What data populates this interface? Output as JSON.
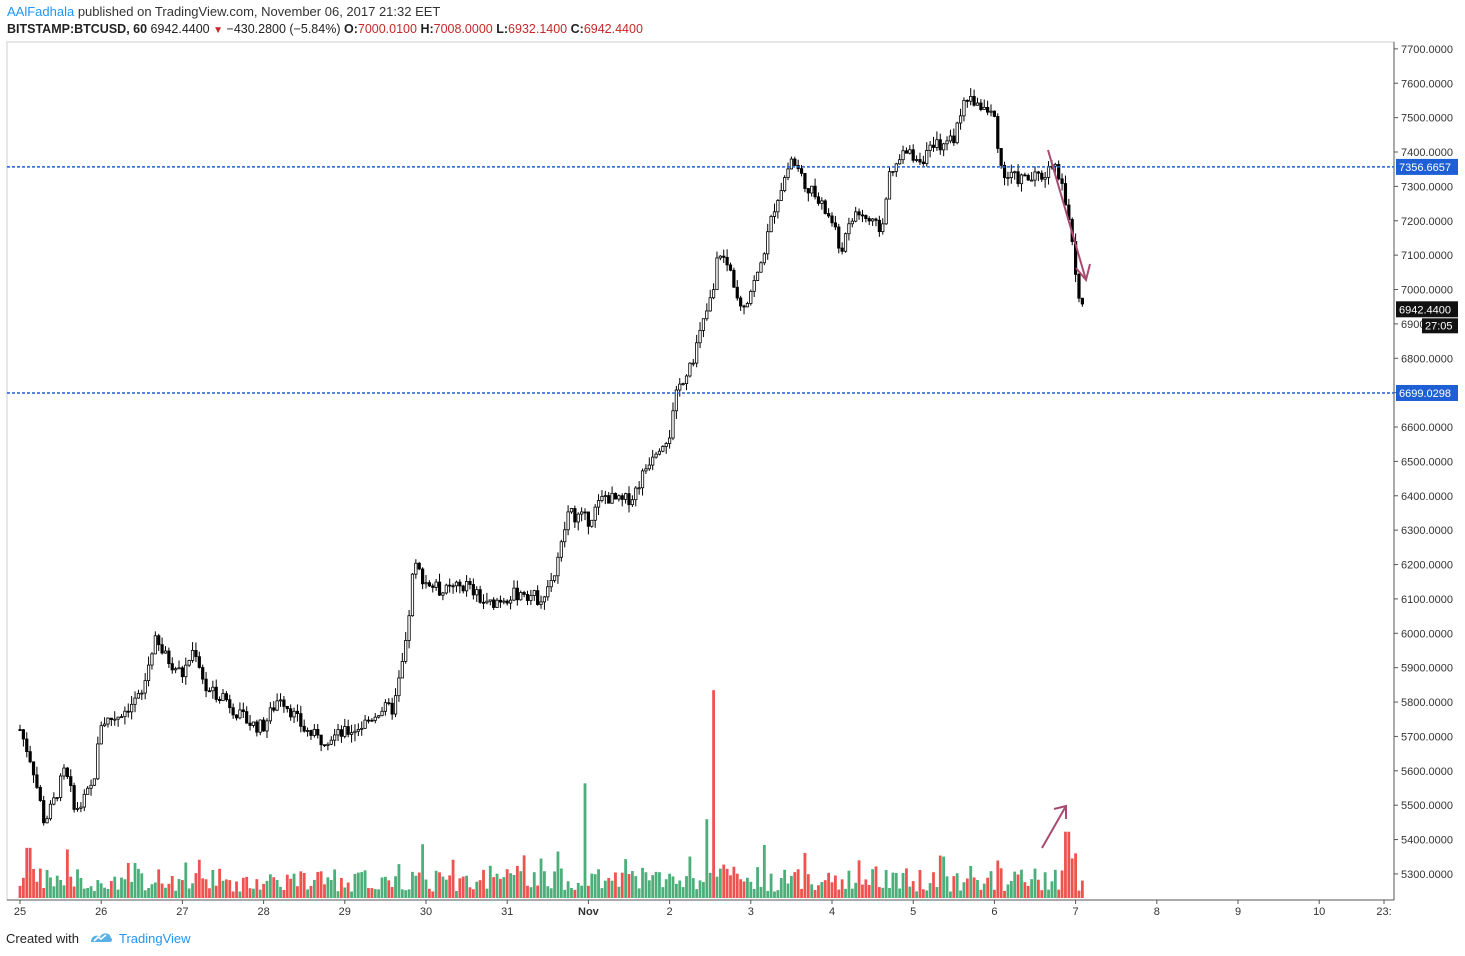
{
  "header": {
    "author": "AAlFadhala",
    "published_text": " published on TradingView.com, November 06, 2017 21:32 EET",
    "symbol": "BITSTAMP:BTCUSD, 60",
    "last": "6942.4400",
    "change": "−430.2800 (−5.84%)",
    "o_label": "O:",
    "o": "7000.0100",
    "h_label": "H:",
    "h": "7008.0000",
    "l_label": "L:",
    "l": "6932.1400",
    "c_label": "C:",
    "c": "6942.4400"
  },
  "footer": {
    "created_with": "Created with",
    "brand": "TradingView"
  },
  "colors": {
    "up": "#26a69a",
    "vol_up": "#4caf7a",
    "vol_down": "#ef5350",
    "hline": "#1e5fd6",
    "arrow": "#a84a70",
    "price_label_bg": "#111111"
  },
  "chart_data": {
    "type": "candlestick",
    "symbol": "BITSTAMP:BTCUSD",
    "interval": "60",
    "y_axis": {
      "min": 5230,
      "max": 7720,
      "ticks": [
        5300,
        5400,
        5500,
        5600,
        5700,
        5800,
        5900,
        6000,
        6100,
        6200,
        6300,
        6400,
        6500,
        6600,
        6700,
        6800,
        6900,
        7000,
        7100,
        7200,
        7300,
        7400,
        7500,
        7600,
        7700
      ],
      "tick_format": "0000.0000"
    },
    "x_axis": {
      "ticks": [
        "25",
        "26",
        "27",
        "28",
        "29",
        "30",
        "31",
        "Nov",
        "2",
        "3",
        "4",
        "5",
        "6",
        "7",
        "8",
        "9",
        "10",
        "23:"
      ]
    },
    "price_path": [
      [
        0,
        5720
      ],
      [
        0.15,
        5620
      ],
      [
        0.3,
        5450
      ],
      [
        0.4,
        5500
      ],
      [
        0.55,
        5600
      ],
      [
        0.7,
        5480
      ],
      [
        0.9,
        5560
      ],
      [
        1.0,
        5740
      ],
      [
        1.2,
        5760
      ],
      [
        1.5,
        5820
      ],
      [
        1.65,
        5980
      ],
      [
        1.8,
        5930
      ],
      [
        2.0,
        5880
      ],
      [
        2.15,
        5960
      ],
      [
        2.3,
        5830
      ],
      [
        2.5,
        5820
      ],
      [
        2.7,
        5760
      ],
      [
        2.9,
        5730
      ],
      [
        3.0,
        5730
      ],
      [
        3.2,
        5820
      ],
      [
        3.5,
        5720
      ],
      [
        3.7,
        5690
      ],
      [
        4.0,
        5710
      ],
      [
        4.2,
        5730
      ],
      [
        4.45,
        5780
      ],
      [
        4.6,
        5780
      ],
      [
        4.75,
        5960
      ],
      [
        4.85,
        6200
      ],
      [
        5.0,
        6150
      ],
      [
        5.2,
        6120
      ],
      [
        5.5,
        6140
      ],
      [
        5.75,
        6080
      ],
      [
        5.9,
        6100
      ],
      [
        6.2,
        6120
      ],
      [
        6.4,
        6100
      ],
      [
        6.6,
        6180
      ],
      [
        6.75,
        6350
      ],
      [
        7.0,
        6330
      ],
      [
        7.2,
        6400
      ],
      [
        7.4,
        6380
      ],
      [
        7.55,
        6400
      ],
      [
        7.8,
        6530
      ],
      [
        8.0,
        6580
      ],
      [
        8.1,
        6710
      ],
      [
        8.3,
        6810
      ],
      [
        8.45,
        6930
      ],
      [
        8.55,
        7000
      ],
      [
        8.6,
        7120
      ],
      [
        8.75,
        7050
      ],
      [
        8.9,
        6950
      ],
      [
        9.1,
        7050
      ],
      [
        9.3,
        7250
      ],
      [
        9.5,
        7380
      ],
      [
        9.7,
        7300
      ],
      [
        10.0,
        7200
      ],
      [
        10.1,
        7110
      ],
      [
        10.3,
        7230
      ],
      [
        10.6,
        7170
      ],
      [
        10.7,
        7320
      ],
      [
        10.9,
        7400
      ],
      [
        11.1,
        7380
      ],
      [
        11.3,
        7420
      ],
      [
        11.5,
        7440
      ],
      [
        11.65,
        7560
      ],
      [
        11.8,
        7540
      ],
      [
        12.0,
        7500
      ],
      [
        12.1,
        7330
      ],
      [
        12.4,
        7320
      ],
      [
        12.6,
        7330
      ],
      [
        12.75,
        7380
      ],
      [
        12.85,
        7280
      ],
      [
        12.95,
        7150
      ],
      [
        13.0,
        7050
      ],
      [
        13.05,
        6950
      ],
      [
        13.1,
        6942
      ]
    ],
    "volume_scale": {
      "min": 0,
      "max": 6000
    },
    "volume_spikes": [
      {
        "x": 0.1,
        "value": 1400,
        "dir": "down"
      },
      {
        "x": 4.95,
        "value": 1500,
        "dir": "up"
      },
      {
        "x": 6.95,
        "value": 3200,
        "dir": "up"
      },
      {
        "x": 8.55,
        "value": 5800,
        "dir": "down"
      },
      {
        "x": 8.45,
        "value": 2200,
        "dir": "up"
      },
      {
        "x": 12.9,
        "value": 1850,
        "dir": "down"
      }
    ],
    "horizontal_lines": [
      {
        "price": 7356.6657,
        "label": "7356.6657"
      },
      {
        "price": 6699.0298,
        "label": "6699.0298"
      }
    ],
    "last_price": {
      "price": 6942.44,
      "label": "6942.4400",
      "countdown": "27:05"
    }
  }
}
